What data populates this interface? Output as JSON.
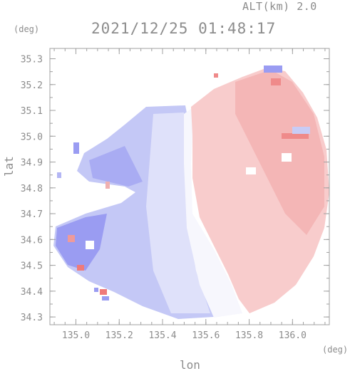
{
  "header": {
    "altitude_label": "ALT(km) 2.0",
    "datetime": "2021/12/25 01:48:17"
  },
  "axes": {
    "x_label": "lon",
    "y_label": "lat",
    "x_unit": "(deg)",
    "y_unit": "(deg)",
    "x_range": [
      134.88,
      136.17
    ],
    "y_range": [
      34.27,
      35.34
    ],
    "x_ticks": [
      "135.0",
      "135.2",
      "135.4",
      "135.6",
      "135.8",
      "136.0"
    ],
    "y_ticks": [
      "35.3",
      "35.2",
      "35.1",
      "35.0",
      "34.9",
      "34.8",
      "34.7",
      "34.6",
      "34.5",
      "34.4",
      "34.3"
    ],
    "frame_color": "#a0a0a0"
  },
  "colors": {
    "approaching_blue": "#8888f0",
    "light_blue": "#c8ccf6",
    "near_zero_white": "#ffffff",
    "light_red": "#f7c8c8",
    "receding_red": "#ef8a8a"
  }
}
